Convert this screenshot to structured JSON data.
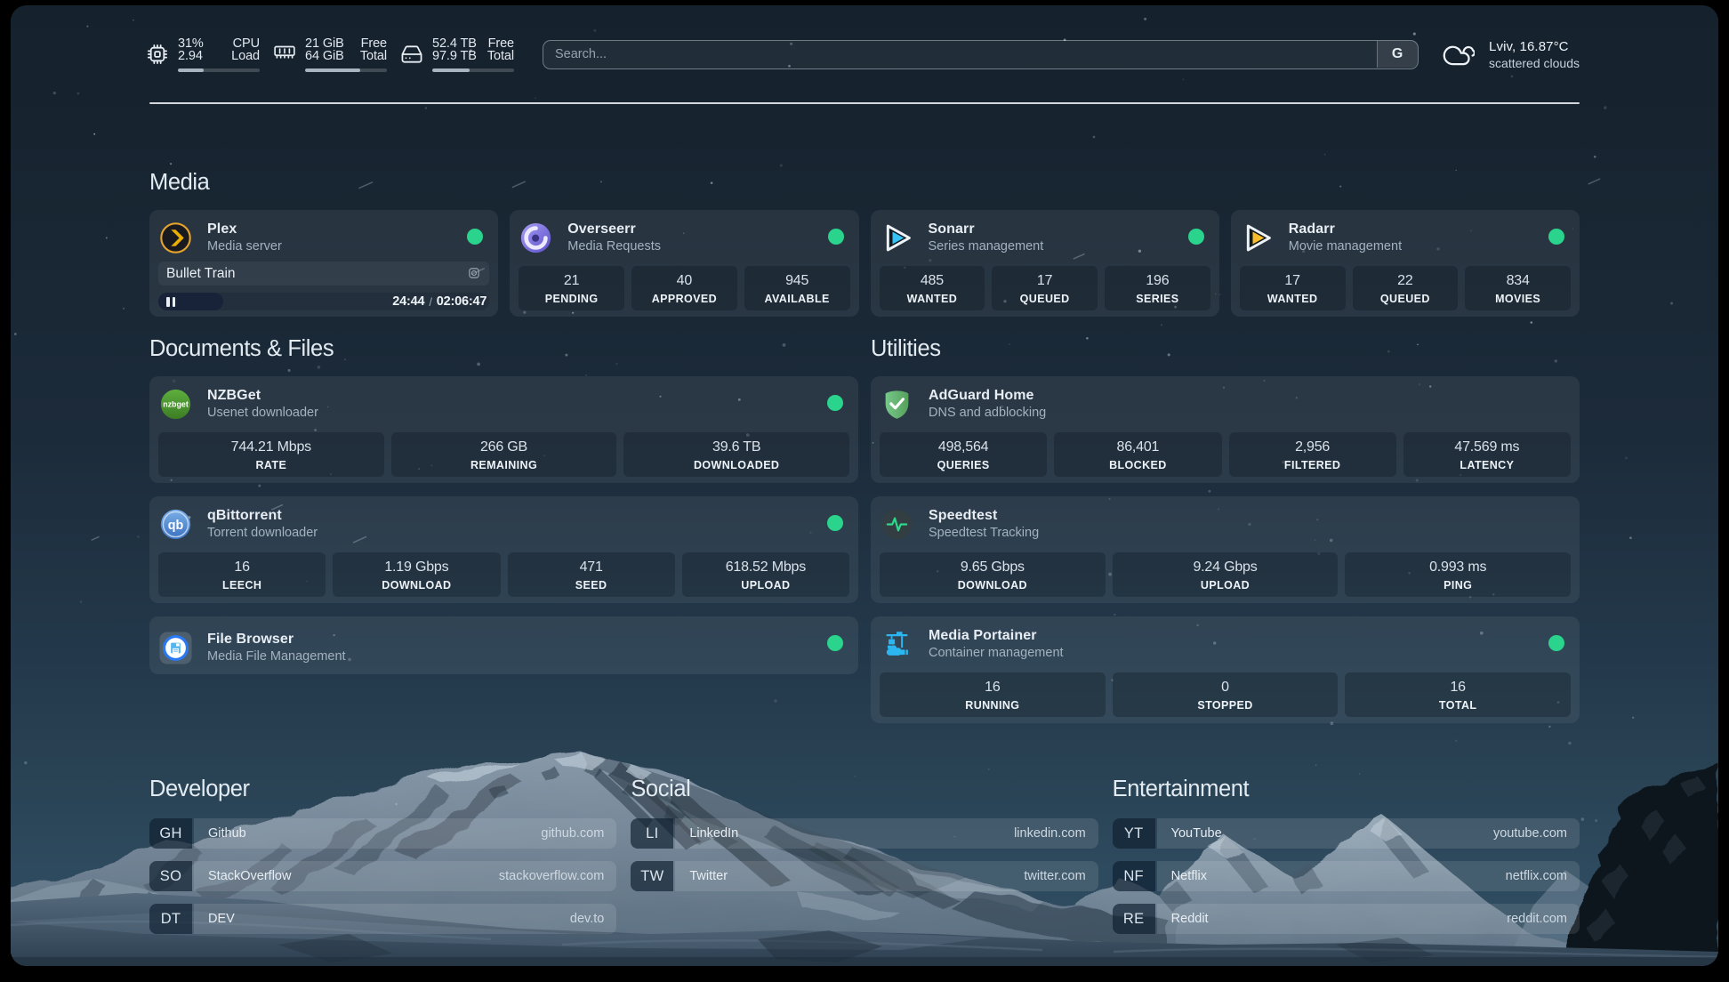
{
  "topbar": {
    "cpu": {
      "icon": "cpu-icon",
      "row1_left": "31%",
      "row1_right": "CPU",
      "row2_left": "2.94",
      "row2_right": "Load",
      "bar_percent": 31
    },
    "memory": {
      "icon": "memory-icon",
      "row1_left": "21 GiB",
      "row1_right": "Free",
      "row2_left": "64 GiB",
      "row2_right": "Total",
      "bar_percent": 67
    },
    "disk": {
      "icon": "disk-icon",
      "row1_left": "52.4 TB",
      "row1_right": "Free",
      "row2_left": "97.9 TB",
      "row2_right": "Total",
      "bar_percent": 46
    },
    "search": {
      "placeholder": "Search...",
      "button_label": "G"
    },
    "weather": {
      "icon": "cloud-icon",
      "title": "Lviv, 16.87°C",
      "subtitle": "scattered clouds"
    }
  },
  "service_groups": [
    {
      "title": "Media",
      "width": "full",
      "layout": "row",
      "items": [
        {
          "name": "Plex",
          "description": "Media server",
          "icon": "plex",
          "online": true,
          "media": {
            "title": "Bullet Train",
            "state": "paused",
            "progress_percent": 19.5,
            "position": "24:44",
            "separator": "/",
            "duration": "02:06:47"
          }
        },
        {
          "name": "Overseerr",
          "description": "Media Requests",
          "icon": "overseerr",
          "online": true,
          "stats": [
            {
              "value": "21",
              "label": "PENDING"
            },
            {
              "value": "40",
              "label": "APPROVED"
            },
            {
              "value": "945",
              "label": "AVAILABLE"
            }
          ]
        },
        {
          "name": "Sonarr",
          "description": "Series management",
          "icon": "sonarr",
          "online": true,
          "stats": [
            {
              "value": "485",
              "label": "WANTED"
            },
            {
              "value": "17",
              "label": "QUEUED"
            },
            {
              "value": "196",
              "label": "SERIES"
            }
          ]
        },
        {
          "name": "Radarr",
          "description": "Movie management",
          "icon": "radarr",
          "online": true,
          "stats": [
            {
              "value": "17",
              "label": "WANTED"
            },
            {
              "value": "22",
              "label": "QUEUED"
            },
            {
              "value": "834",
              "label": "MOVIES"
            }
          ]
        }
      ]
    },
    {
      "title": "Documents & Files",
      "width": "half",
      "layout": "column",
      "items": [
        {
          "name": "NZBGet",
          "description": "Usenet downloader",
          "icon": "nzbget",
          "online": true,
          "stats": [
            {
              "value": "744.21 Mbps",
              "label": "RATE"
            },
            {
              "value": "266 GB",
              "label": "REMAINING"
            },
            {
              "value": "39.6 TB",
              "label": "DOWNLOADED"
            }
          ]
        },
        {
          "name": "qBittorrent",
          "description": "Torrent downloader",
          "icon": "qbittorrent",
          "online": true,
          "stats": [
            {
              "value": "16",
              "label": "LEECH"
            },
            {
              "value": "1.19 Gbps",
              "label": "DOWNLOAD"
            },
            {
              "value": "471",
              "label": "SEED"
            },
            {
              "value": "618.52 Mbps",
              "label": "UPLOAD"
            }
          ]
        },
        {
          "name": "File Browser",
          "description": "Media File Management",
          "icon": "filebrowser",
          "online": true
        }
      ]
    },
    {
      "title": "Utilities",
      "width": "half",
      "layout": "column",
      "items": [
        {
          "name": "AdGuard Home",
          "description": "DNS and adblocking",
          "icon": "adguard",
          "online": false,
          "stats": [
            {
              "value": "498,564",
              "label": "QUERIES"
            },
            {
              "value": "86,401",
              "label": "BLOCKED"
            },
            {
              "value": "2,956",
              "label": "FILTERED"
            },
            {
              "value": "47.569 ms",
              "label": "LATENCY"
            }
          ]
        },
        {
          "name": "Speedtest",
          "description": "Speedtest Tracking",
          "icon": "speedtest",
          "online": false,
          "stats": [
            {
              "value": "9.65 Gbps",
              "label": "DOWNLOAD"
            },
            {
              "value": "9.24 Gbps",
              "label": "UPLOAD"
            },
            {
              "value": "0.993 ms",
              "label": "PING"
            }
          ]
        },
        {
          "name": "Media Portainer",
          "description": "Container management",
          "icon": "portainer",
          "online": true,
          "stats": [
            {
              "value": "16",
              "label": "RUNNING"
            },
            {
              "value": "0",
              "label": "STOPPED"
            },
            {
              "value": "16",
              "label": "TOTAL"
            }
          ]
        }
      ]
    }
  ],
  "bookmark_groups": [
    {
      "title": "Developer",
      "items": [
        {
          "abbr": "GH",
          "name": "Github",
          "url": "github.com"
        },
        {
          "abbr": "SO",
          "name": "StackOverflow",
          "url": "stackoverflow.com"
        },
        {
          "abbr": "DT",
          "name": "DEV",
          "url": "dev.to"
        }
      ]
    },
    {
      "title": "Social",
      "items": [
        {
          "abbr": "LI",
          "name": "LinkedIn",
          "url": "linkedin.com"
        },
        {
          "abbr": "TW",
          "name": "Twitter",
          "url": "twitter.com"
        }
      ]
    },
    {
      "title": "Entertainment",
      "items": [
        {
          "abbr": "YT",
          "name": "YouTube",
          "url": "youtube.com"
        },
        {
          "abbr": "NF",
          "name": "Netflix",
          "url": "netflix.com"
        },
        {
          "abbr": "RE",
          "name": "Reddit",
          "url": "reddit.com"
        }
      ]
    }
  ],
  "colors": {
    "status_online": "#2bd48c",
    "page_frame": "#000000",
    "accent_bar": "#a8b5c1"
  }
}
